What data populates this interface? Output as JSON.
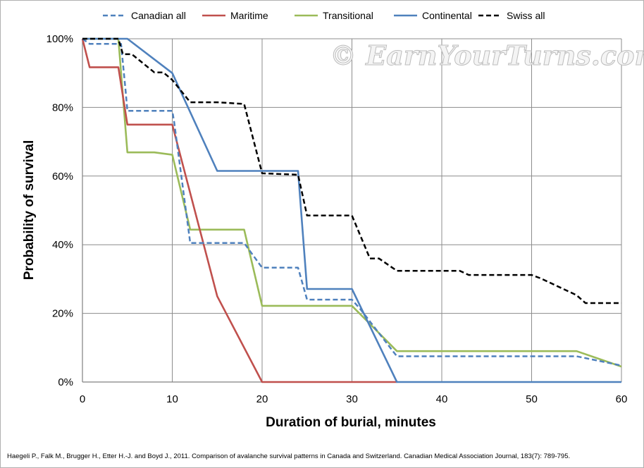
{
  "watermark": "© EarnYourTurns.com",
  "citation": "Haegeli P., Falk M., Brugger H., Etter H.-J. and Boyd J., 2011. Comparison of avalanche survival patterns in Canada and Switzerland. Canadian Medical Association Journal, 183(7): 789-795.",
  "chart_data": {
    "type": "line",
    "xlabel": "Duration of burial, minutes",
    "ylabel": "Probability of survival",
    "xlim": [
      0,
      60
    ],
    "ylim": [
      0,
      100
    ],
    "x_ticks": [
      0,
      10,
      20,
      30,
      40,
      50,
      60
    ],
    "y_ticks": [
      0,
      20,
      40,
      60,
      80,
      100
    ],
    "y_tick_labels": [
      "0%",
      "20%",
      "40%",
      "60%",
      "80%",
      "100%"
    ],
    "grid": true,
    "legend_position": "top",
    "series": [
      {
        "name": "Canadian all",
        "color": "#4f81bd",
        "style": "dashed",
        "x": [
          0,
          0.8,
          4.3,
          4.8,
          5,
          10,
          10.2,
          12,
          18,
          20,
          24,
          25,
          30,
          31,
          35,
          55,
          60
        ],
        "y": [
          100,
          98.5,
          98.5,
          85,
          79,
          79,
          76,
          40.5,
          40.5,
          33.3,
          33.3,
          24,
          24,
          21,
          7.5,
          7.5,
          4.8
        ]
      },
      {
        "name": "Maritime",
        "color": "#c0504d",
        "style": "solid",
        "x": [
          0,
          0.8,
          4,
          5,
          10,
          15,
          20,
          35
        ],
        "y": [
          100,
          91.7,
          91.7,
          75,
          75,
          25,
          0,
          0
        ]
      },
      {
        "name": "Transitional",
        "color": "#9bbb59",
        "style": "solid",
        "x": [
          0,
          4,
          5,
          8,
          10,
          12,
          18,
          20,
          30,
          35,
          55,
          60
        ],
        "y": [
          100,
          100,
          66.9,
          66.9,
          66.2,
          44.4,
          44.4,
          22.2,
          22.2,
          9,
          9,
          4.5
        ]
      },
      {
        "name": "Continental",
        "color": "#4f81bd",
        "style": "solid",
        "x": [
          0,
          3,
          5,
          10,
          15,
          24,
          25,
          30,
          35,
          60
        ],
        "y": [
          100,
          100,
          100,
          90,
          61.5,
          61.5,
          27.1,
          27.1,
          0,
          0
        ]
      },
      {
        "name": "Swiss all",
        "color": "#000000",
        "style": "dashed",
        "x": [
          0,
          4,
          4.5,
          5.5,
          8,
          9,
          10,
          12,
          15,
          18,
          20,
          24,
          25,
          30,
          32,
          33,
          35,
          42,
          43,
          50,
          51,
          55,
          56,
          60
        ],
        "y": [
          100,
          100,
          95.5,
          95.5,
          90.2,
          90.2,
          88,
          81.5,
          81.5,
          81,
          60.8,
          60.4,
          48.5,
          48.5,
          36,
          36,
          32.4,
          32.4,
          31.2,
          31.2,
          30.2,
          25.3,
          23,
          23
        ]
      }
    ]
  }
}
